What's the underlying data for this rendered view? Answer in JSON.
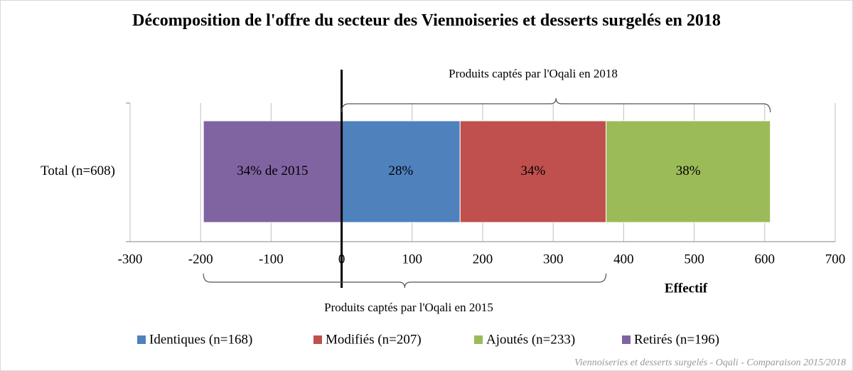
{
  "chart_data": {
    "type": "stacked_barh",
    "title": "Décomposition de l'offre du secteur des Viennoiseries et desserts surgelés en 2018",
    "categories": [
      "Total (n=608)"
    ],
    "series": [
      {
        "name": "Identiques (n=168)",
        "color": "#4f81bd",
        "values": [
          168
        ],
        "value_labels": [
          "28%"
        ]
      },
      {
        "name": "Modifiés (n=207)",
        "color": "#c0504d",
        "values": [
          207
        ],
        "value_labels": [
          "34%"
        ]
      },
      {
        "name": "Ajoutés (n=233)",
        "color": "#9bbb59",
        "values": [
          233
        ],
        "value_labels": [
          "38%"
        ]
      },
      {
        "name": "Retirés (n=196)",
        "color": "#8064a2",
        "values": [
          -196
        ],
        "value_labels": [
          "34% de 2015"
        ]
      }
    ],
    "xlabel": "Effectif",
    "xlim": [
      -300,
      700
    ],
    "xticks": [
      -300,
      -200,
      -100,
      0,
      100,
      200,
      300,
      400,
      500,
      600,
      700
    ],
    "grid": true,
    "legend": "bottom",
    "annotations": [
      "Produits captés par l'Oqali en 2018",
      "Produits captés par l'Oqali en 2015"
    ],
    "source": "Viennoiseries et desserts surgelés - Oqali - Comparaison 2015/2018"
  }
}
